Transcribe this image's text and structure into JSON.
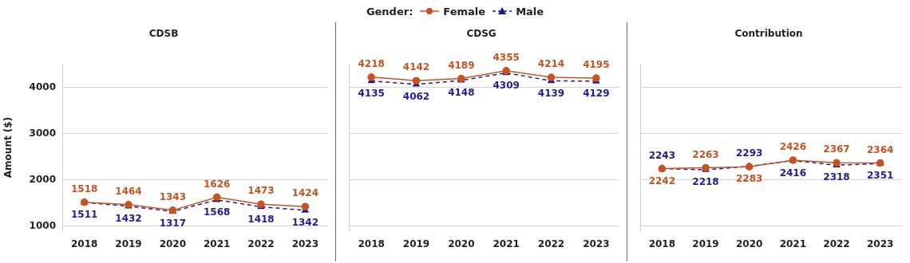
{
  "chart_data": [
    {
      "type": "line",
      "title": "CDSB",
      "ylabel": "Amount ($)",
      "legend_title": "Gender:",
      "legend": "top",
      "categories": [
        "2018",
        "2019",
        "2020",
        "2021",
        "2022",
        "2023"
      ],
      "ylim": [
        900,
        4500
      ],
      "yticks": [
        1000,
        2000,
        3000,
        4000
      ],
      "grid": "y",
      "data_labels": true,
      "series": [
        {
          "name": "Female",
          "color": "#c9531f",
          "values": [
            1518,
            1464,
            1343,
            1626,
            1473,
            1424
          ],
          "marker": "circle",
          "line_style": "solid"
        },
        {
          "name": "Male",
          "color": "#1c1c96",
          "values": [
            1511,
            1432,
            1317,
            1568,
            1418,
            1342
          ],
          "marker": "triangle",
          "line_style": "dashed"
        }
      ]
    },
    {
      "type": "line",
      "title": "CDSG",
      "categories": [
        "2018",
        "2019",
        "2020",
        "2021",
        "2022",
        "2023"
      ],
      "ylim": [
        900,
        4500
      ],
      "yticks": [
        1000,
        2000,
        3000,
        4000
      ],
      "grid": "y",
      "data_labels": true,
      "tick_labels": "x",
      "series": [
        {
          "color": "#c9531f",
          "values": [
            4218,
            4142,
            4189,
            4355,
            4214,
            4195
          ],
          "marker": "circle",
          "line_style": "solid"
        },
        {
          "color": "#1c1c96",
          "values": [
            4135,
            4062,
            4148,
            4309,
            4139,
            4129
          ],
          "marker": "triangle",
          "line_style": "dashed"
        }
      ]
    },
    {
      "type": "line",
      "title": "Contribution",
      "categories": [
        "2018",
        "2019",
        "2020",
        "2021",
        "2022",
        "2023"
      ],
      "ylim": [
        900,
        4500
      ],
      "yticks": [
        1000,
        2000,
        3000,
        4000
      ],
      "grid": "y",
      "data_labels": true,
      "tick_labels": "x",
      "series": [
        {
          "color": "#c9531f",
          "values": [
            2242,
            2263,
            2283,
            2426,
            2367,
            2364
          ],
          "marker": "circle",
          "line_style": "solid"
        },
        {
          "color": "#1c1c96",
          "values": [
            2243,
            2218,
            2293,
            2416,
            2318,
            2351
          ],
          "marker": "triangle",
          "line_style": "dashed"
        }
      ]
    }
  ]
}
